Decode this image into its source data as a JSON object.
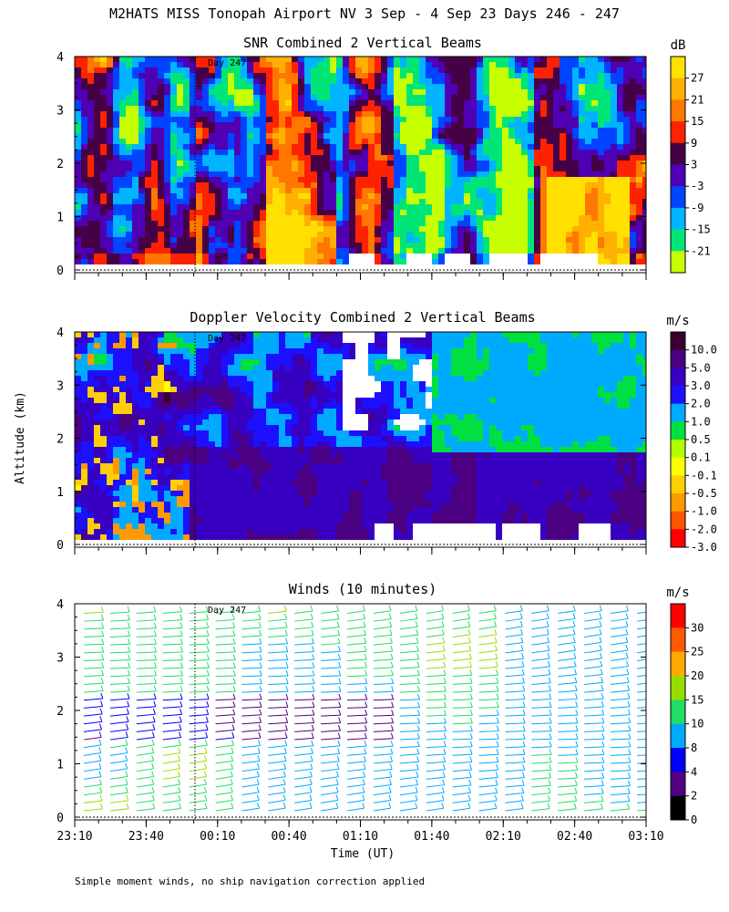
{
  "header": {
    "title": "M2HATS MISS Tonopah Airport NV   3 Sep -  4 Sep 23 Days 246 - 247"
  },
  "footer": {
    "note": "Simple moment winds, no ship navigation correction applied"
  },
  "axes": {
    "ylabel": "Altitude (km)",
    "xlabel": "Time (UT)",
    "yticks": [
      "0",
      "1",
      "2",
      "3",
      "4"
    ],
    "xticks": [
      "23:10",
      "23:40",
      "00:10",
      "00:40",
      "01:10",
      "01:40",
      "02:10",
      "02:40",
      "03:10"
    ],
    "day_marker": "Day 247"
  },
  "chart_data": [
    {
      "type": "heatmap",
      "title": "SNR Combined 2 Vertical Beams",
      "unit": "dB",
      "ylim": [
        0,
        4
      ],
      "xlim": [
        "23:10",
        "03:10"
      ],
      "colorbar_labels": [
        "27",
        "21",
        "15",
        "9",
        "3",
        "-3",
        "-9",
        "-15",
        "-21"
      ],
      "colorbar_colors": [
        "#ffe000",
        "#ffb000",
        "#ff7700",
        "#ff2200",
        "#460046",
        "#5000b4",
        "#0044ff",
        "#00b4ff",
        "#00e676",
        "#c8ff00"
      ]
    },
    {
      "type": "heatmap",
      "title": "Doppler Velocity Combined 2 Vertical Beams",
      "unit": "m/s",
      "ylim": [
        0,
        4
      ],
      "xlim": [
        "23:10",
        "03:10"
      ],
      "colorbar_labels": [
        "10.0",
        "5.0",
        "3.0",
        "2.0",
        "1.0",
        "0.5",
        "0.1",
        "-0.1",
        "-0.5",
        "-1.0",
        "-2.0",
        "-3.0"
      ],
      "colorbar_colors": [
        "#3a0030",
        "#4a0080",
        "#3800c0",
        "#1c10ff",
        "#00aaff",
        "#00e040",
        "#b0ff00",
        "#ffff00",
        "#ffd000",
        "#ff9900",
        "#ff5500",
        "#ff0000"
      ]
    },
    {
      "type": "scatter",
      "title": "Winds (10 minutes)",
      "unit": "m/s",
      "ylim": [
        0,
        4
      ],
      "xlim": [
        "23:10",
        "03:10"
      ],
      "colorbar_labels": [
        "30",
        "25",
        "20",
        "15",
        "10",
        "8",
        "4",
        "2",
        "0"
      ],
      "colorbar_colors": [
        "#ff0000",
        "#ff5a00",
        "#ffaa00",
        "#99dd00",
        "#22dd66",
        "#00aaff",
        "#0000ff",
        "#500080",
        "#000000"
      ]
    }
  ]
}
